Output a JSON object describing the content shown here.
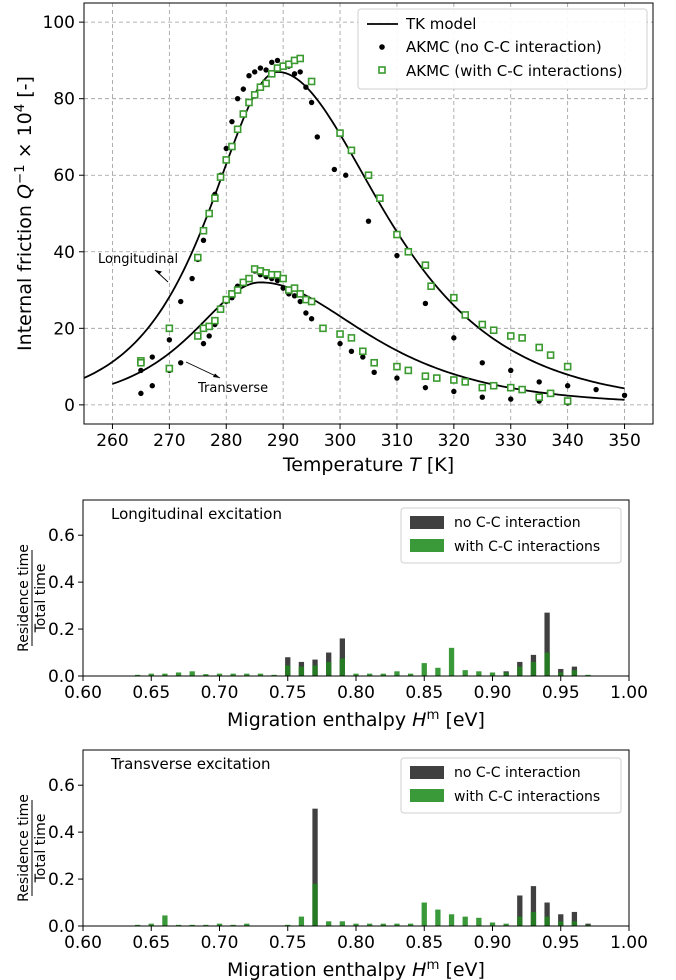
{
  "chart_data": [
    {
      "type": "scatter",
      "xlabel": "Temperature T [K]",
      "ylabel": "Internal friction Q⁻¹ × 10⁴ [-]",
      "xlim": [
        255,
        355
      ],
      "ylim": [
        -5,
        105
      ],
      "xticks": [
        260,
        270,
        280,
        290,
        300,
        310,
        320,
        330,
        340,
        350
      ],
      "yticks": [
        0,
        20,
        40,
        60,
        80,
        100
      ],
      "grid": true,
      "legend": "top-right",
      "legend_entries": [
        "TK model",
        "AKMC (no C-C interaction)",
        "AKMC (with C-C interactions)"
      ],
      "annotations": [
        "Longitudinal",
        "Transverse"
      ],
      "series": [
        {
          "name": "TK model",
          "kind": "line",
          "peak_x": 289,
          "peak_y": 87,
          "width_left": 10.6,
          "width_right": 16.5,
          "x": [
            255,
            350
          ]
        },
        {
          "name": "TK model",
          "kind": "line",
          "peak_x": 286,
          "peak_y": 32,
          "width_left": 10.6,
          "width_right": 16.5,
          "x": [
            260,
            350
          ]
        },
        {
          "name": "AKMC (no C-C interaction)",
          "kind": "scatter",
          "color": "#000000",
          "x": [
            265,
            267,
            270,
            272,
            274,
            275,
            276,
            277,
            278,
            279,
            280,
            281,
            282,
            283,
            284,
            285,
            286,
            287,
            288,
            289,
            290,
            291,
            292,
            293,
            294,
            295,
            296,
            299,
            301,
            305,
            310,
            315,
            320,
            325,
            330,
            335,
            340,
            345,
            350
          ],
          "y": [
            9,
            12.5,
            17,
            27,
            33,
            38,
            43,
            50,
            55,
            60,
            67,
            74,
            80,
            82.5,
            86,
            87,
            88,
            87.5,
            89.5,
            90,
            88.5,
            88.5,
            86.5,
            87,
            83,
            79,
            70,
            61.5,
            60,
            48,
            39,
            26.5,
            17.5,
            11,
            9,
            6,
            5,
            4,
            2.5
          ]
        },
        {
          "name": "AKMC (no C-C interaction)",
          "kind": "scatter",
          "color": "#000000",
          "x": [
            265,
            267,
            270,
            272,
            276,
            277,
            278,
            279,
            280,
            281,
            282,
            283,
            284,
            285,
            286,
            287,
            288,
            289,
            290,
            291,
            292,
            293,
            294,
            295,
            297,
            300,
            302,
            304,
            306,
            310,
            315,
            320,
            325,
            330,
            335,
            340
          ],
          "y": [
            3,
            5,
            9,
            11,
            16,
            18,
            21,
            25,
            27,
            28,
            31,
            31.5,
            33,
            35,
            34,
            33.5,
            33,
            32.5,
            30.5,
            29,
            28.5,
            27,
            24,
            22.5,
            20,
            16,
            14,
            12.5,
            8.5,
            7,
            4.5,
            3.5,
            2,
            1.5,
            1,
            0.5
          ]
        },
        {
          "name": "AKMC (with C-C interactions)",
          "kind": "scatter",
          "color": "#3a9a2f",
          "x": [
            265,
            270,
            275,
            276,
            277,
            278,
            279,
            280,
            281,
            282,
            283,
            284,
            285,
            286,
            287,
            288,
            289,
            290,
            291,
            292,
            293,
            295,
            300,
            302,
            305,
            307,
            310,
            312,
            315,
            316,
            320,
            322,
            325,
            327,
            330,
            332,
            335,
            337,
            340
          ],
          "y": [
            11.5,
            20,
            38.5,
            45.5,
            50,
            54,
            59.5,
            64,
            67.5,
            72,
            76,
            79,
            81,
            83,
            84,
            86.5,
            88,
            88.5,
            89,
            90,
            90.5,
            84.5,
            71,
            66.5,
            60,
            54,
            44.5,
            40,
            36.5,
            31,
            28,
            23.5,
            21,
            19.5,
            18,
            17.5,
            15,
            13,
            10
          ]
        },
        {
          "name": "AKMC (with C-C interactions)",
          "kind": "scatter",
          "color": "#3a9a2f",
          "x": [
            265,
            270,
            275,
            276,
            277,
            278,
            279,
            280,
            281,
            282,
            283,
            284,
            285,
            286,
            287,
            288,
            289,
            290,
            291,
            292,
            293,
            294,
            295,
            297,
            300,
            302,
            304,
            306,
            310,
            312,
            315,
            317,
            320,
            322,
            325,
            327,
            330,
            332,
            335,
            337,
            340
          ],
          "y": [
            11,
            9.5,
            18,
            20,
            20.5,
            22,
            25,
            27.5,
            29,
            30,
            32,
            33,
            35.5,
            35,
            34.5,
            34,
            34,
            33,
            30,
            30.5,
            29,
            27.5,
            27,
            20,
            18.5,
            17.5,
            14,
            11,
            10,
            9,
            7.5,
            7,
            6.5,
            6,
            4.5,
            5,
            4.5,
            4,
            2,
            3,
            1
          ]
        }
      ]
    },
    {
      "type": "bar",
      "title": "Longitudinal excitation",
      "xlabel": "Migration enthalpy H^m [eV]",
      "ylabel": "Residence time / Total time",
      "xlim": [
        0.6,
        1.0
      ],
      "ylim": [
        0,
        0.75
      ],
      "xticks": [
        "0.60",
        "0.65",
        "0.70",
        "0.75",
        "0.80",
        "0.85",
        "0.90",
        "0.95",
        "1.00"
      ],
      "yticks": [
        "0.0",
        "0.2",
        "0.4",
        "0.6"
      ],
      "legend": "top-right",
      "categories": [
        0.64,
        0.65,
        0.66,
        0.67,
        0.68,
        0.69,
        0.7,
        0.71,
        0.72,
        0.73,
        0.74,
        0.75,
        0.76,
        0.77,
        0.78,
        0.79,
        0.8,
        0.81,
        0.82,
        0.83,
        0.84,
        0.85,
        0.86,
        0.87,
        0.88,
        0.89,
        0.9,
        0.91,
        0.92,
        0.93,
        0.94,
        0.95,
        0.96,
        0.97
      ],
      "series": [
        {
          "name": "no C-C interaction",
          "color": "#404040",
          "values": [
            0,
            0,
            0,
            0,
            0,
            0,
            0,
            0,
            0,
            0,
            0,
            0.08,
            0.06,
            0.07,
            0.1,
            0.16,
            0,
            0,
            0,
            0,
            0,
            0,
            0,
            0,
            0,
            0,
            0,
            0.02,
            0.06,
            0.09,
            0.27,
            0.03,
            0.04,
            0
          ]
        },
        {
          "name": "with C-C interactions",
          "color": "#3a9a3a",
          "values": [
            0.005,
            0.01,
            0.01,
            0.015,
            0.02,
            0.008,
            0.01,
            0.01,
            0.01,
            0.01,
            0.005,
            0.045,
            0.04,
            0.045,
            0.06,
            0.075,
            0.01,
            0.01,
            0.01,
            0.02,
            0.01,
            0.055,
            0.035,
            0.12,
            0.025,
            0.02,
            0.015,
            0.015,
            0.04,
            0.06,
            0.1,
            0.015,
            0.025,
            0.005
          ]
        }
      ]
    },
    {
      "type": "bar",
      "title": "Transverse excitation",
      "xlabel": "Migration enthalpy H^m [eV]",
      "ylabel": "Residence time / Total time",
      "xlim": [
        0.6,
        1.0
      ],
      "ylim": [
        0,
        0.75
      ],
      "xticks": [
        "0.60",
        "0.65",
        "0.70",
        "0.75",
        "0.80",
        "0.85",
        "0.90",
        "0.95",
        "1.00"
      ],
      "yticks": [
        "0.0",
        "0.2",
        "0.4",
        "0.6"
      ],
      "legend": "top-right",
      "categories": [
        0.64,
        0.65,
        0.66,
        0.67,
        0.68,
        0.69,
        0.7,
        0.71,
        0.72,
        0.73,
        0.74,
        0.75,
        0.76,
        0.77,
        0.78,
        0.79,
        0.8,
        0.81,
        0.82,
        0.83,
        0.84,
        0.85,
        0.86,
        0.87,
        0.88,
        0.89,
        0.9,
        0.91,
        0.92,
        0.93,
        0.94,
        0.95,
        0.96,
        0.97
      ],
      "series": [
        {
          "name": "no C-C interaction",
          "color": "#404040",
          "values": [
            0,
            0,
            0,
            0,
            0,
            0,
            0,
            0,
            0,
            0,
            0,
            0,
            0,
            0.5,
            0,
            0,
            0,
            0,
            0,
            0,
            0,
            0,
            0,
            0,
            0,
            0,
            0,
            0,
            0.13,
            0.17,
            0.1,
            0.05,
            0.06,
            0.01
          ]
        },
        {
          "name": "with C-C interactions",
          "color": "#3a9a3a",
          "values": [
            0.005,
            0.01,
            0.045,
            0.005,
            0.005,
            0.005,
            0.01,
            0.005,
            0.01,
            0,
            0,
            0.005,
            0.04,
            0.18,
            0.02,
            0.02,
            0.01,
            0.01,
            0.01,
            0.01,
            0.01,
            0.1,
            0.07,
            0.05,
            0.04,
            0.035,
            0.015,
            0.01,
            0.04,
            0.06,
            0.04,
            0.02,
            0.02,
            0.005
          ]
        }
      ]
    }
  ]
}
